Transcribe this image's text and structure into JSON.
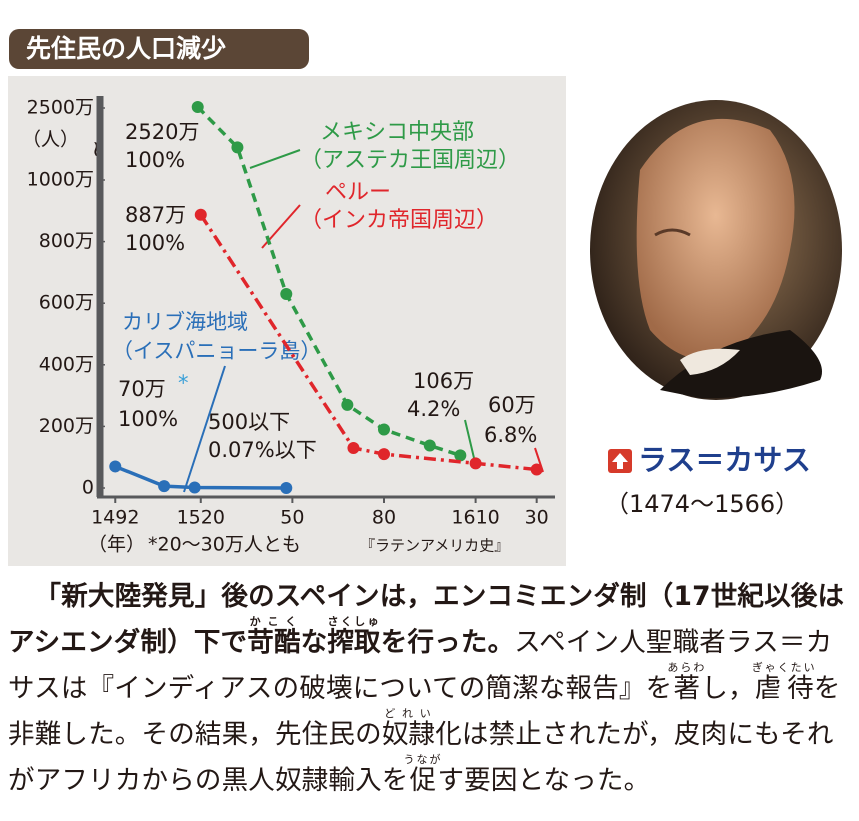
{
  "title": "先住民の人口減少",
  "chart_data": {
    "type": "line",
    "y_unit_label": "（人）",
    "x_unit_label": "（年）",
    "footnote": "*20～30万人とも",
    "source": "『ラテンアメリカ史』",
    "xlim": [
      1487,
      1636
    ],
    "xticks": [
      1492,
      1520,
      {
        "value": 1550,
        "label": "50"
      },
      {
        "value": 1580,
        "label": "80"
      },
      1610,
      {
        "value": 1630,
        "label": "30"
      }
    ],
    "ylim": [
      0,
      2500
    ],
    "axis_break": true,
    "yticks": [
      0,
      {
        "value": 200,
        "label": "200万"
      },
      {
        "value": 400,
        "label": "400万"
      },
      {
        "value": 600,
        "label": "600万"
      },
      {
        "value": 800,
        "label": "800万"
      },
      {
        "value": 1000,
        "label": "1000万"
      },
      {
        "value": 2500,
        "label": "2500万"
      }
    ],
    "series": [
      {
        "name": "メキシコ中央部",
        "region": "（アステカ王国周辺）",
        "color": "#2e9a47",
        "style": "dashed",
        "x": [
          1519,
          1532,
          1548,
          1568,
          1580,
          1595,
          1605
        ],
        "values": [
          2520,
          1680,
          630,
          270,
          190,
          138,
          106
        ]
      },
      {
        "name": "ペルー",
        "region": "（インカ帝国周辺）",
        "color": "#e0262b",
        "style": "dashdot",
        "x": [
          1520,
          1570,
          1580,
          1610,
          1630
        ],
        "values": [
          887,
          130,
          110,
          80,
          60
        ]
      },
      {
        "name": "カリブ海地域",
        "region": "（イスパニョーラ島）",
        "color": "#2a6fb8",
        "style": "solid",
        "x": [
          1492,
          1508,
          1518,
          1548
        ],
        "values": [
          70,
          6,
          1.5,
          0.05
        ]
      }
    ],
    "annotations": [
      "2520万",
      "100%",
      "887万",
      "100%",
      "70万",
      "*",
      "100%",
      "500以下",
      "0.07%以下",
      "106万",
      "4.2%",
      "60万",
      "6.8%"
    ]
  },
  "portrait": {
    "name": "ラス＝カサス",
    "years": "（1474～1566）"
  },
  "body": [
    {
      "text": "「新大陸発見」後のスペインは，エンコミエンダ制（17世紀以後はアシエンダ制）下で",
      "bold": true
    },
    {
      "text": "苛酷",
      "ruby": "かこく",
      "bold": true
    },
    {
      "text": "な",
      "bold": true
    },
    {
      "text": "搾取",
      "ruby": "さくしゅ",
      "bold": true
    },
    {
      "text": "を行った。",
      "bold": true
    },
    {
      "text": "スペイン人聖職者ラス＝カサスは『インディアスの破壊についての簡潔な報告』を"
    },
    {
      "text": "著",
      "ruby": "あらわ"
    },
    {
      "text": "し，"
    },
    {
      "text": "虐待",
      "ruby": "ぎゃくたい"
    },
    {
      "text": "を非難した。その結果，先住民の"
    },
    {
      "text": "奴隷",
      "ruby": "どれい"
    },
    {
      "text": "化は禁止されたが，皮肉にもそれがアフリカからの黒人奴隷輸入を"
    },
    {
      "text": "促",
      "ruby": "うなが"
    },
    {
      "text": "す要因となった。"
    }
  ]
}
